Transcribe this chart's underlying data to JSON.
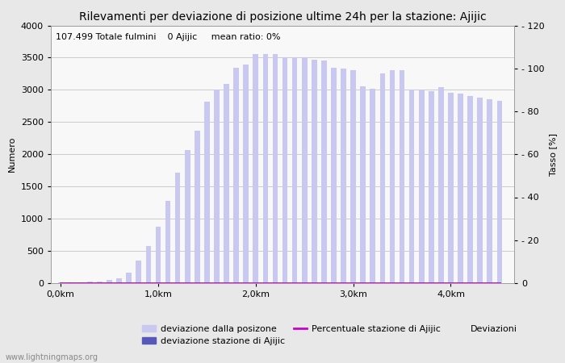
{
  "title": "Rilevamenti per deviazione di posizione ultime 24h per la stazione: Ajijic",
  "subtitle": "107.499 Totale fulmini    0 Ajijic     mean ratio: 0%",
  "xlabel": "Deviazioni",
  "ylabel_left": "Numero",
  "ylabel_right": "Tasso [%]",
  "watermark": "www.lightningmaps.org",
  "bar_color_light": "#c8c8f0",
  "bar_color_dark": "#5858bb",
  "line_color": "#cc00cc",
  "ylim_left": [
    0,
    4000
  ],
  "ylim_right": [
    0,
    120
  ],
  "yticks_left": [
    0,
    500,
    1000,
    1500,
    2000,
    2500,
    3000,
    3500,
    4000
  ],
  "yticks_right": [
    0,
    20,
    40,
    60,
    80,
    100,
    120
  ],
  "xtick_labels": [
    "0,0km",
    "1,0km",
    "2,0km",
    "3,0km",
    "4,0km"
  ],
  "xtick_positions": [
    0.0,
    1.0,
    2.0,
    3.0,
    4.0
  ],
  "categories": [
    0.0,
    0.1,
    0.2,
    0.3,
    0.4,
    0.5,
    0.6,
    0.7,
    0.8,
    0.9,
    1.0,
    1.1,
    1.2,
    1.3,
    1.4,
    1.5,
    1.6,
    1.7,
    1.8,
    1.9,
    2.0,
    2.1,
    2.2,
    2.3,
    2.4,
    2.5,
    2.6,
    2.7,
    2.8,
    2.9,
    3.0,
    3.1,
    3.2,
    3.3,
    3.4,
    3.5,
    3.6,
    3.7,
    3.8,
    3.9,
    4.0,
    4.1,
    4.2,
    4.3,
    4.4,
    4.5
  ],
  "values_total": [
    10,
    10,
    15,
    20,
    30,
    50,
    80,
    160,
    350,
    570,
    880,
    1280,
    1720,
    2060,
    2360,
    2820,
    3000,
    3090,
    3340,
    3390,
    3550,
    3560,
    3560,
    3510,
    3510,
    3500,
    3470,
    3450,
    3340,
    3330,
    3310,
    3050,
    3020,
    3250,
    3310,
    3300,
    3000,
    3000,
    2980,
    3040,
    2950,
    2940,
    2900,
    2880,
    2850,
    2830
  ],
  "values_station": [
    0,
    0,
    0,
    0,
    0,
    0,
    0,
    0,
    0,
    0,
    0,
    0,
    0,
    0,
    0,
    0,
    0,
    0,
    0,
    0,
    0,
    0,
    0,
    0,
    0,
    0,
    0,
    0,
    0,
    0,
    0,
    0,
    0,
    0,
    0,
    0,
    0,
    0,
    0,
    0,
    0,
    0,
    0,
    0,
    0,
    0
  ],
  "values_percent": [
    0,
    0,
    0,
    0,
    0,
    0,
    0,
    0,
    0,
    0,
    0,
    0,
    0,
    0,
    0,
    0,
    0,
    0,
    0,
    0,
    0,
    0,
    0,
    0,
    0,
    0,
    0,
    0,
    0,
    0,
    0,
    0,
    0,
    0,
    0,
    0,
    0,
    0,
    0,
    0,
    0,
    0,
    0,
    0,
    0,
    0
  ],
  "bg_color": "#e8e8e8",
  "plot_bg_color": "#f8f8f8",
  "grid_color": "#bbbbbb",
  "title_fontsize": 10,
  "label_fontsize": 8,
  "tick_fontsize": 8,
  "legend_fontsize": 8,
  "subtitle_fontsize": 8
}
